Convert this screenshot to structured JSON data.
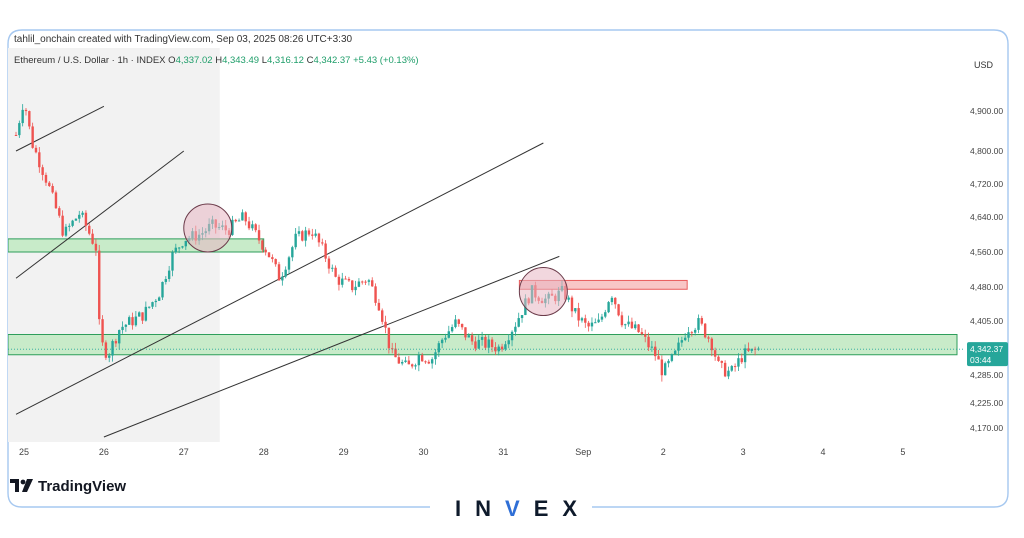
{
  "header": {
    "credit": "tahlil_onchain created with TradingView.com, Sep 03, 2025 08:26 UTC+3:30"
  },
  "symbol_line": {
    "name": "Ethereum / U.S. Dollar · 1h · INDEX",
    "o_label": "O",
    "o": "4,337.02",
    "h_label": "H",
    "h": "4,343.49",
    "l_label": "L",
    "l": "4,316.12",
    "c_label": "C",
    "c": "4,342.37",
    "change": "+5.43 (+0.13%)"
  },
  "footer": {
    "tradingview": "TradingView",
    "brand_pre": "IN",
    "brand_v": "V",
    "brand_post": "EX"
  },
  "colors": {
    "up": "#26a69a",
    "down": "#ef5350",
    "support_zone": "#c8ebc9",
    "support_border": "#2e9e5b",
    "resistance_zone": "#f8c6c6",
    "resistance_border": "#e85b5b",
    "circle": "#e8b7c3",
    "shade": "#f2f2f2",
    "price_badge": "#26a69a"
  },
  "chart_data": {
    "type": "candlestick",
    "currency": "USD",
    "timeframe": "1h",
    "x_ticks": [
      "25",
      "26",
      "27",
      "28",
      "29",
      "30",
      "31",
      "Sep",
      "2",
      "3",
      "4",
      "5"
    ],
    "y_ticks": [
      4900,
      4800,
      4720,
      4640,
      4560,
      4480,
      4405,
      4285,
      4225,
      4170
    ],
    "y_tick_labels": [
      "4,900.00",
      "4,800.00",
      "4,720.00",
      "4,640.00",
      "4,560.00",
      "4,480.00",
      "4,405.00",
      "4,285.00",
      "4,225.00",
      "4,170.00"
    ],
    "ylim": [
      4150,
      4970
    ],
    "last_price": 4342.37,
    "last_price_label": "4,342.37",
    "countdown": "03:44",
    "close_path": [
      [
        24.9,
        4840
      ],
      [
        25.0,
        4930
      ],
      [
        25.1,
        4820
      ],
      [
        25.3,
        4720
      ],
      [
        25.5,
        4600
      ],
      [
        25.7,
        4650
      ],
      [
        25.9,
        4570
      ],
      [
        25.95,
        4360
      ],
      [
        26.05,
        4330
      ],
      [
        26.2,
        4390
      ],
      [
        26.5,
        4420
      ],
      [
        26.7,
        4470
      ],
      [
        26.85,
        4550
      ],
      [
        27.0,
        4590
      ],
      [
        27.2,
        4600
      ],
      [
        27.35,
        4620
      ],
      [
        27.55,
        4610
      ],
      [
        27.75,
        4640
      ],
      [
        27.9,
        4600
      ],
      [
        28.05,
        4560
      ],
      [
        28.2,
        4500
      ],
      [
        28.4,
        4590
      ],
      [
        28.6,
        4610
      ],
      [
        28.75,
        4560
      ],
      [
        28.9,
        4500
      ],
      [
        29.1,
        4480
      ],
      [
        29.3,
        4500
      ],
      [
        29.45,
        4440
      ],
      [
        29.6,
        4330
      ],
      [
        29.8,
        4300
      ],
      [
        29.95,
        4330
      ],
      [
        30.1,
        4320
      ],
      [
        30.25,
        4370
      ],
      [
        30.4,
        4400
      ],
      [
        30.6,
        4360
      ],
      [
        30.75,
        4355
      ],
      [
        30.95,
        4345
      ],
      [
        31.15,
        4400
      ],
      [
        31.35,
        4470
      ],
      [
        31.55,
        4450
      ],
      [
        31.75,
        4470
      ],
      [
        31.9,
        4420
      ],
      [
        32.05,
        4390
      ],
      [
        32.2,
        4400
      ],
      [
        32.35,
        4470
      ],
      [
        32.5,
        4400
      ],
      [
        32.7,
        4380
      ],
      [
        32.9,
        4330
      ],
      [
        33.0,
        4290
      ],
      [
        33.15,
        4330
      ],
      [
        33.3,
        4390
      ],
      [
        33.45,
        4400
      ],
      [
        33.6,
        4360
      ],
      [
        33.7,
        4300
      ],
      [
        33.85,
        4290
      ],
      [
        34.0,
        4330
      ],
      [
        34.1,
        4335
      ],
      [
        34.2,
        4342.37
      ]
    ],
    "annotations": {
      "support_zone": [
        4330,
        4375
      ],
      "upper_zone": [
        4560,
        4590
      ],
      "resistance_zone": [
        4475,
        4495
      ],
      "circles": [
        [
          27.3,
          4615
        ],
        [
          31.5,
          4470
        ]
      ],
      "channel_lines": [
        [
          [
            24.9,
            4800
          ],
          [
            26.0,
            4910
          ]
        ],
        [
          [
            24.9,
            4500
          ],
          [
            27.0,
            4800
          ]
        ],
        [
          [
            24.9,
            4200
          ],
          [
            31.5,
            4820
          ]
        ],
        [
          [
            26.0,
            4150
          ],
          [
            31.7,
            4550
          ]
        ]
      ]
    }
  }
}
